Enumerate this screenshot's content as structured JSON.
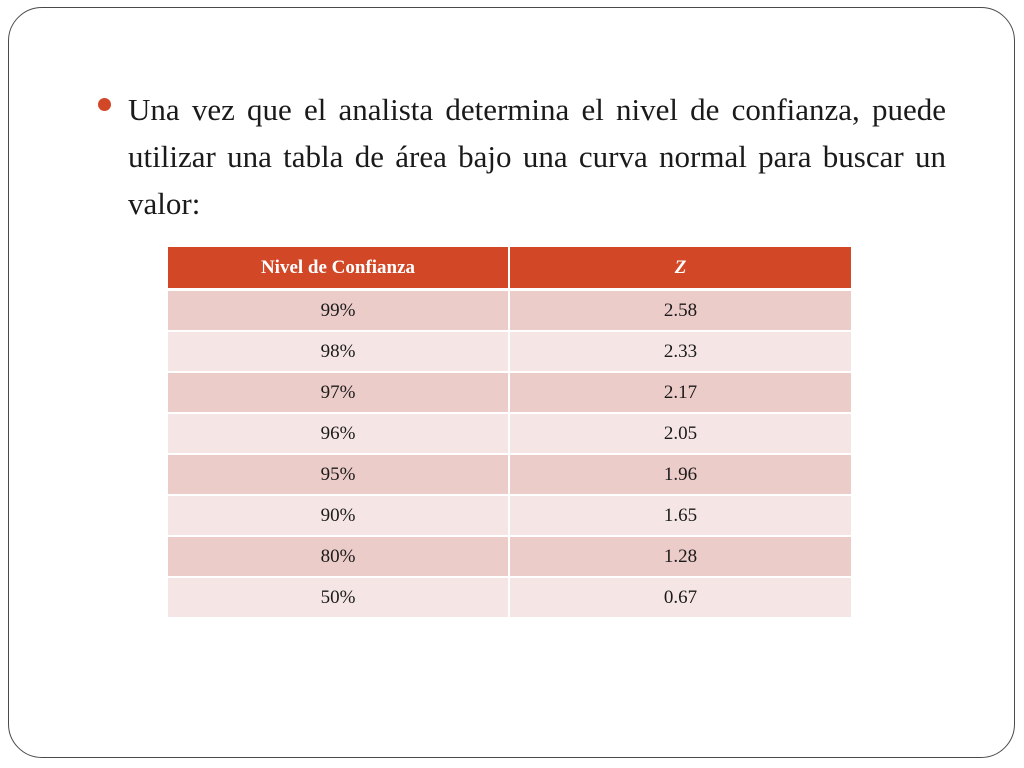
{
  "bullet": {
    "text": "Una vez que el analista determina el nivel de confianza, puede utilizar una tabla de área bajo una curva normal para buscar un valor:"
  },
  "table": {
    "headers": {
      "level": "Nivel de Confianza",
      "z": "Z"
    },
    "rows": [
      {
        "level": "99%",
        "z": "2.58"
      },
      {
        "level": "98%",
        "z": "2.33"
      },
      {
        "level": "97%",
        "z": "2.17"
      },
      {
        "level": "96%",
        "z": "2.05"
      },
      {
        "level": "95%",
        "z": "1.96"
      },
      {
        "level": "90%",
        "z": "1.65"
      },
      {
        "level": "80%",
        "z": "1.28"
      },
      {
        "level": "50%",
        "z": "0.67"
      }
    ]
  },
  "colors": {
    "accent": "#d24726",
    "row_dark": "#ecccc9",
    "row_light": "#f5e6e5"
  }
}
